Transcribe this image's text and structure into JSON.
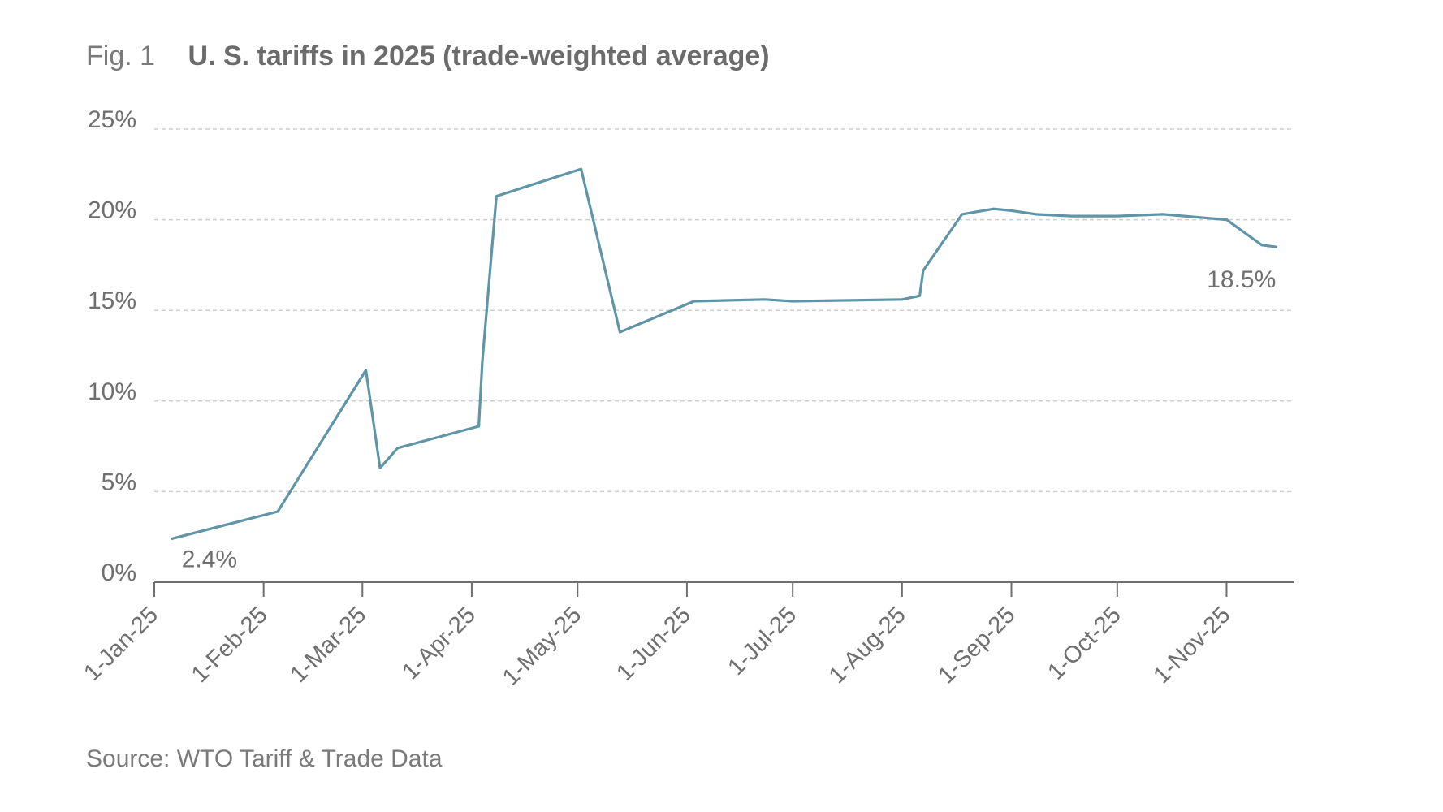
{
  "figure": {
    "label": "Fig. 1",
    "title": "U. S. tariffs in 2025 (trade-weighted average)",
    "source": "Source: WTO Tariff & Trade Data"
  },
  "chart_data": {
    "type": "line",
    "title": "U. S. tariffs in 2025 (trade-weighted average)",
    "xlabel": "",
    "ylabel": "",
    "ylim": [
      0,
      25
    ],
    "yticks": [
      0,
      5,
      10,
      15,
      20,
      25
    ],
    "ytick_labels": [
      "0%",
      "5%",
      "10%",
      "15%",
      "20%",
      "25%"
    ],
    "xlim": [
      "2025-01-01",
      "2025-11-20"
    ],
    "xticks": [
      "2025-01-01",
      "2025-02-01",
      "2025-03-01",
      "2025-04-01",
      "2025-05-01",
      "2025-06-01",
      "2025-07-01",
      "2025-08-01",
      "2025-09-01",
      "2025-10-01",
      "2025-11-01"
    ],
    "xtick_labels": [
      "1-Jan-25",
      "1-Feb-25",
      "1-Mar-25",
      "1-Apr-25",
      "1-May-25",
      "1-Jun-25",
      "1-Jul-25",
      "1-Aug-25",
      "1-Sep-25",
      "1-Oct-25",
      "1-Nov-25"
    ],
    "grid": "horizontal dashed",
    "series_color": "#5f95a6",
    "series": [
      {
        "values": [
          {
            "x": "2025-01-06",
            "y": 2.4
          },
          {
            "x": "2025-02-05",
            "y": 3.9
          },
          {
            "x": "2025-03-02",
            "y": 11.7
          },
          {
            "x": "2025-03-06",
            "y": 6.3
          },
          {
            "x": "2025-03-11",
            "y": 7.4
          },
          {
            "x": "2025-04-03",
            "y": 8.6
          },
          {
            "x": "2025-04-04",
            "y": 12.2
          },
          {
            "x": "2025-04-08",
            "y": 21.3
          },
          {
            "x": "2025-05-02",
            "y": 22.8
          },
          {
            "x": "2025-05-13",
            "y": 13.8
          },
          {
            "x": "2025-06-03",
            "y": 15.5
          },
          {
            "x": "2025-06-23",
            "y": 15.6
          },
          {
            "x": "2025-07-01",
            "y": 15.5
          },
          {
            "x": "2025-08-01",
            "y": 15.6
          },
          {
            "x": "2025-08-06",
            "y": 15.8
          },
          {
            "x": "2025-08-07",
            "y": 17.2
          },
          {
            "x": "2025-08-18",
            "y": 20.3
          },
          {
            "x": "2025-08-27",
            "y": 20.6
          },
          {
            "x": "2025-09-01",
            "y": 20.5
          },
          {
            "x": "2025-09-08",
            "y": 20.3
          },
          {
            "x": "2025-09-18",
            "y": 20.2
          },
          {
            "x": "2025-10-01",
            "y": 20.2
          },
          {
            "x": "2025-10-14",
            "y": 20.3
          },
          {
            "x": "2025-11-01",
            "y": 20.0
          },
          {
            "x": "2025-11-11",
            "y": 18.6
          },
          {
            "x": "2025-11-15",
            "y": 18.5
          }
        ]
      }
    ],
    "annotations": [
      {
        "text": "2.4%",
        "x": "2025-01-06",
        "y": 2.4,
        "position": "below-right"
      },
      {
        "text": "18.5%",
        "x": "2025-11-15",
        "y": 18.5,
        "position": "below"
      }
    ]
  }
}
